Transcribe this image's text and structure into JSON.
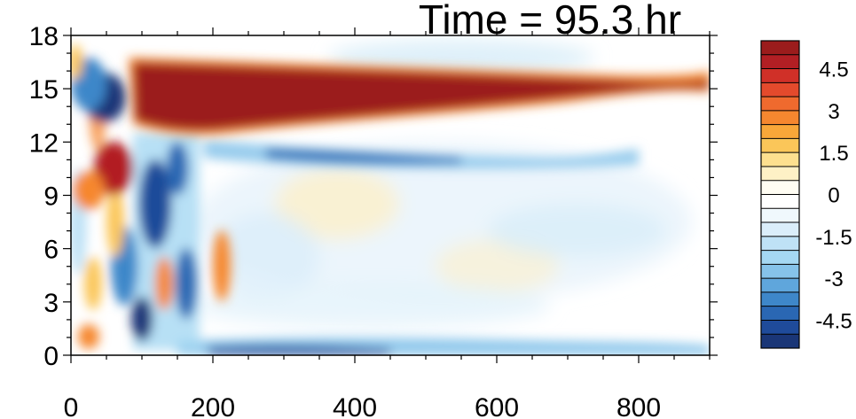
{
  "chart_data": {
    "type": "heatmap",
    "title": "Time = 95.3 hr",
    "xlim": [
      0,
      900
    ],
    "ylim": [
      0,
      18
    ],
    "x_ticks": [
      "0",
      "200",
      "400",
      "600",
      "800"
    ],
    "x_tick_values": [
      0,
      200,
      400,
      600,
      800
    ],
    "y_ticks": [
      "0",
      "3",
      "6",
      "9",
      "12",
      "15",
      "18"
    ],
    "y_tick_values": [
      0,
      3,
      6,
      9,
      12,
      15,
      18
    ],
    "colorbar": {
      "levels": [
        -5.5,
        -5,
        -4.5,
        -4,
        -3.5,
        -3,
        -2.5,
        -2,
        -1.5,
        -1,
        -0.5,
        0,
        0.5,
        1,
        1.5,
        2,
        2.5,
        3,
        3.5,
        4,
        4.5,
        5,
        5.5
      ],
      "labels": [
        "4.5",
        "3",
        "1.5",
        "0",
        "-1.5",
        "-3",
        "-4.5"
      ],
      "label_values": [
        4.5,
        3,
        1.5,
        0,
        -1.5,
        -3,
        -4.5
      ],
      "colors_top_to_bottom": [
        "#9b1c1c",
        "#b21f24",
        "#d03028",
        "#e44a2c",
        "#ef6a2e",
        "#f6872f",
        "#f9a739",
        "#fbc659",
        "#fde08f",
        "#fef1c6",
        "#fffdf3",
        "#ffffff",
        "#f0f8fd",
        "#dbeefa",
        "#bfe2f6",
        "#a5d8f3",
        "#86c3ea",
        "#5fa6dc",
        "#3e87c9",
        "#2a67b3",
        "#1f4b9a",
        "#1a3677"
      ]
    },
    "features": [
      {
        "label": "warm band",
        "x": [
          90,
          900
        ],
        "y": [
          13,
          16.5
        ],
        "value": 5
      },
      {
        "label": "cool band below",
        "x": [
          220,
          700
        ],
        "y": [
          11,
          12.5
        ],
        "value": -3
      },
      {
        "label": "cool surface layer",
        "x": [
          200,
          800
        ],
        "y": [
          0,
          1
        ],
        "value": -4
      },
      {
        "label": "cool core near origin",
        "x": [
          20,
          80
        ],
        "y": [
          13,
          16
        ],
        "value": -5
      },
      {
        "label": "warm core near origin",
        "x": [
          50,
          120
        ],
        "y": [
          9,
          11.5
        ],
        "value": 5
      },
      {
        "label": "mixed region",
        "x": [
          80,
          220
        ],
        "y": [
          0,
          12
        ],
        "value": -4
      }
    ]
  }
}
